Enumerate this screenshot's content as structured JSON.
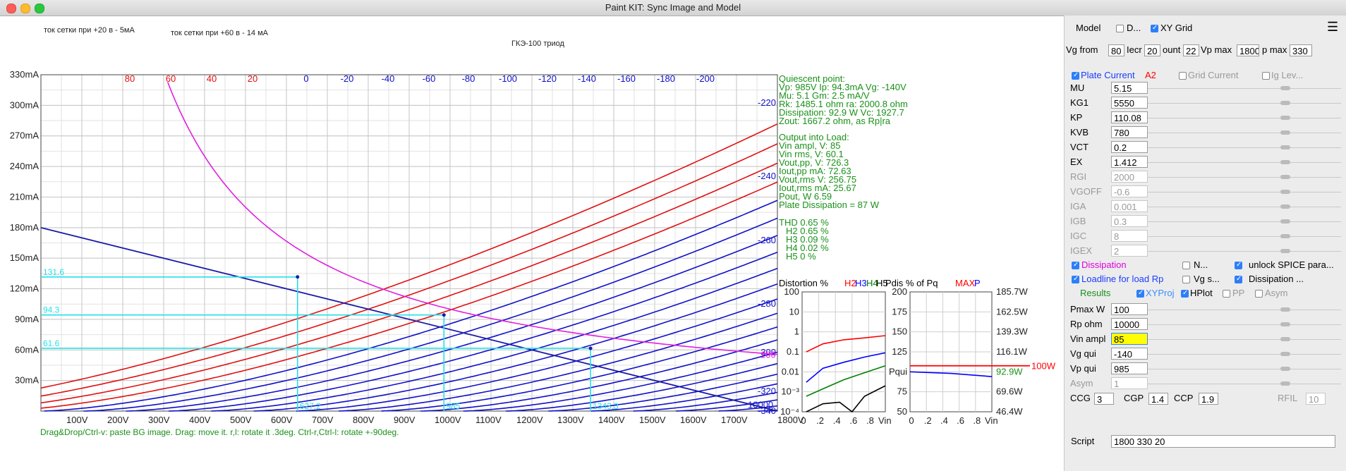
{
  "window": {
    "title": "Paint KIT: Sync Image and Model"
  },
  "bg_notes": {
    "note1": "ток сетки при +20 в - 5мА",
    "note2": "ток сетки при +60 в - 14 мА",
    "tube": "ГКЭ-100   триод"
  },
  "status_hint": "Drag&Drop/Ctrl-v: paste BG image. Drag: move it. r,l: rotate it .3deg. Ctrl-r,Ctrl-l: rotate +-90deg.",
  "chart_data": [
    {
      "type": "line",
      "title": "",
      "xlabel": "",
      "ylabel": "",
      "xlim": [
        0,
        1800
      ],
      "ylim": [
        0,
        330
      ],
      "x_ticks": [
        "100V",
        "200V",
        "300V",
        "400V",
        "500V",
        "600V",
        "700V",
        "800V",
        "900V",
        "1000V",
        "1100V",
        "1200V",
        "1300V",
        "1400V",
        "1500V",
        "1600V",
        "1700V",
        "1800V"
      ],
      "y_ticks": [
        "30mA",
        "60mA",
        "90mA",
        "120mA",
        "150mA",
        "180mA",
        "210mA",
        "240mA",
        "270mA",
        "300mA",
        "330mA"
      ],
      "grid": true,
      "vg_curves_top_red": [
        "80",
        "60",
        "40",
        "20"
      ],
      "vg_curves_top_blue": [
        "0",
        "-20",
        "-40",
        "-60",
        "-80",
        "-100",
        "-120",
        "-140",
        "-160",
        "-180",
        "-200"
      ],
      "vg_curves_right": [
        "-220",
        "-240",
        "-260",
        "-280",
        "-300",
        "-320",
        "-340"
      ],
      "loadline": {
        "x": [
          0,
          1800
        ],
        "y": [
          180,
          0
        ],
        "label_right": "10000"
      },
      "dissipation_label_right": "100",
      "quiescent": {
        "vp": 985,
        "ip_ma": 94.3
      },
      "swing_ma": [
        "131.6",
        "94.3",
        "61.6"
      ],
      "swing_v": [
        "627.2",
        "985",
        "1343.3"
      ]
    },
    {
      "type": "line",
      "title": "Distortion % ",
      "xlabel": "Vin",
      "ylim_log": [
        0.0001,
        100
      ],
      "y_ticks": [
        "100",
        "10",
        "1",
        "0.1",
        "0.01",
        "10⁻³",
        "10⁻⁴"
      ],
      "x_ticks": [
        "0",
        ".2",
        ".4",
        ".6",
        ".8"
      ],
      "series": [
        {
          "name": "H2",
          "color": "#ff0000",
          "x": [
            0.05,
            0.25,
            0.5,
            0.75,
            1.0
          ],
          "y": [
            0.1,
            0.25,
            0.4,
            0.5,
            0.65
          ]
        },
        {
          "name": "H3",
          "color": "#0000ff",
          "x": [
            0.05,
            0.25,
            0.5,
            0.75,
            1.0
          ],
          "y": [
            0.003,
            0.015,
            0.03,
            0.055,
            0.09
          ]
        },
        {
          "name": "H4",
          "color": "#008000",
          "x": [
            0.05,
            0.25,
            0.5,
            0.75,
            1.0
          ],
          "y": [
            0.0006,
            0.0014,
            0.004,
            0.009,
            0.02
          ]
        },
        {
          "name": "H5",
          "color": "#000000",
          "x": [
            0.05,
            0.25,
            0.45,
            0.6,
            0.75,
            1.0
          ],
          "y": [
            0.0001,
            0.00025,
            0.0003,
            0.0001,
            0.0006,
            0.002
          ]
        }
      ]
    },
    {
      "type": "line",
      "title": "Pdis % of Pq ",
      "xlabel": "Vin",
      "ylim": [
        50,
        200
      ],
      "y_ticks": [
        "200",
        "175",
        "150",
        "125",
        "Pqui",
        "75",
        "50"
      ],
      "y_ticks_right": [
        "185.7W",
        "162.5W",
        "139.3W",
        "116.1W",
        "92.9W",
        "69.6W",
        "46.4W"
      ],
      "x_ticks": [
        "0",
        ".2",
        ".4",
        ".6",
        ".8"
      ],
      "max_line": {
        "value": 107.6,
        "label": "100W",
        "color": "#ff0000"
      },
      "series": [
        {
          "name": "P",
          "color": "#0000ff",
          "x": [
            0,
            0.5,
            1.0
          ],
          "y": [
            100,
            98,
            94
          ]
        }
      ]
    }
  ],
  "results_text": {
    "q_title": "Quiescent point:",
    "q1": "Vp: 985V  Ip: 94.3mA  Vg: -140V",
    "q2": "Mu: 5.1 Gm: 2.5 mA/V",
    "q3": "Rk: 1485.1 ohm ra: 2000.8 ohm",
    "q4": "Dissipation: 92.9 W Vc: 1927.7",
    "q5": "Zout: 1667.2 ohm, as Rp|ra",
    "o_title": "Output into Load:",
    "o1": "Vin ampl, V: 85",
    "o2": "Vin rms,  V: 60.1",
    "o3": "Vout,pp,   V: 726.3",
    "o4": "Iout,pp   mA: 72.63",
    "o5": "Vout,rms   V: 256.75",
    "o6": "Iout,rms  mA: 25.67",
    "o7": "Pout, W       6.59",
    "o8": "Plate Dissipation = 87 W",
    "t0": "THD 0.65 %",
    "t2": "H2 0.65 %",
    "t3": "H3 0.09 %",
    "t4": "H4 0.02 %",
    "t5": "H5 0 %"
  },
  "panel": {
    "model_label": "Model",
    "d_label": "D...",
    "xygrid_label": "XY Grid",
    "vgfrom_label": "Vg from",
    "vgfrom_value": "80",
    "iecr_label": "Iecr",
    "iecr_value": "20",
    "count_label": "ount",
    "count_value": "22",
    "vpmax_label": "Vp max",
    "vpmax_value": "1800",
    "ipmax_label": "p max",
    "ipmax_value": "330",
    "plate_current_label": "Plate Current",
    "a2_label": "A2",
    "grid_current_label": "Grid Current",
    "ig_lev_label": "Ig Lev...",
    "params": [
      {
        "name": "MU",
        "value": "5.15",
        "enabled": true
      },
      {
        "name": "KG1",
        "value": "5550",
        "enabled": true
      },
      {
        "name": "KP",
        "value": "110.08",
        "enabled": true
      },
      {
        "name": "KVB",
        "value": "780",
        "enabled": true
      },
      {
        "name": "VCT",
        "value": "0.2",
        "enabled": true
      },
      {
        "name": "EX",
        "value": "1.412",
        "enabled": true
      },
      {
        "name": "RGI",
        "value": "2000",
        "enabled": false
      },
      {
        "name": "VGOFF",
        "value": "-0.6",
        "enabled": false
      },
      {
        "name": "IGA",
        "value": "0.001",
        "enabled": false
      },
      {
        "name": "IGB",
        "value": "0.3",
        "enabled": false
      },
      {
        "name": "IGC",
        "value": "8",
        "enabled": false
      },
      {
        "name": "IGEX",
        "value": "2",
        "enabled": false
      }
    ],
    "dissipation_label": "Dissipation",
    "n_label": "N...",
    "unlock_label": "unlock SPICE para...",
    "loadline_label": "Loadline for load Rp",
    "vgs_label": "Vg s...",
    "dissipation2_label": "Dissipation ...",
    "results_label": "Results",
    "xyproj_label": "XYProj",
    "hplot_label": "HPlot",
    "pp_label": "PP",
    "asym_cb_label": "Asym",
    "rows": [
      {
        "name": "Pmax W",
        "value": "100",
        "enabled": true
      },
      {
        "name": "Rp ohm",
        "value": "10000",
        "enabled": true
      },
      {
        "name": "Vin ampl",
        "value": "85",
        "enabled": true
      },
      {
        "name": "Vg qui",
        "value": "-140",
        "enabled": true
      },
      {
        "name": "Vp qui",
        "value": "985",
        "enabled": true
      },
      {
        "name": "Asym",
        "value": "1",
        "enabled": false
      }
    ],
    "ccg_label": "CCG",
    "ccg_value": "3",
    "cgp_label": "CGP",
    "cgp_value": "1.4",
    "ccp_label": "CCP",
    "ccp_value": "1.9",
    "rfil_label": "RFIL",
    "rfil_value": "10",
    "script_label": "Script",
    "script_value": "1800 330 20"
  }
}
